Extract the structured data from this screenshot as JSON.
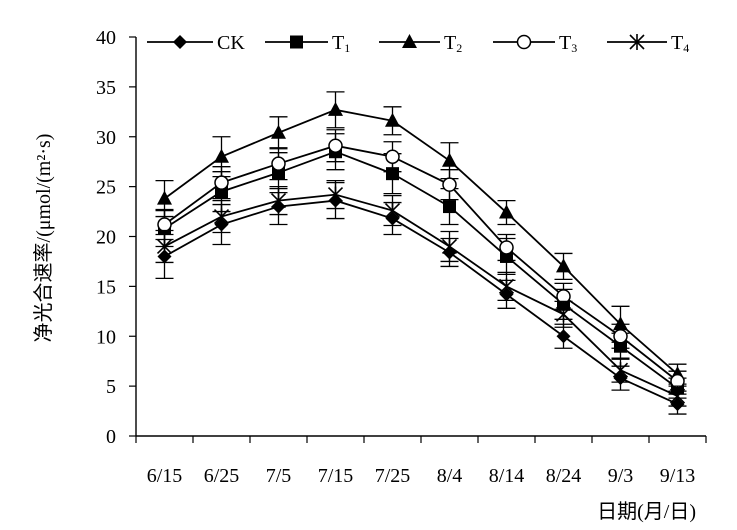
{
  "chart_data": {
    "type": "line",
    "xlabel": "日期(月/日)",
    "ylabel": "净光合速率/(μmol/(m²·s)",
    "categories": [
      "6/15",
      "6/25",
      "7/5",
      "7/15",
      "7/25",
      "8/4",
      "8/14",
      "8/24",
      "9/3",
      "9/13"
    ],
    "ylim": [
      0,
      40
    ],
    "yticks": [
      0,
      5,
      10,
      15,
      20,
      25,
      30,
      35,
      40
    ],
    "grid": false,
    "legend_position": "top",
    "series": [
      {
        "name": "CK",
        "sub": "",
        "marker": "diamond",
        "values": [
          18.0,
          21.2,
          23.0,
          23.6,
          21.8,
          18.4,
          14.2,
          10.0,
          5.8,
          3.2
        ],
        "errors": [
          2.2,
          2.0,
          1.8,
          1.8,
          1.6,
          1.4,
          1.4,
          1.2,
          1.2,
          1.0
        ]
      },
      {
        "name": "T",
        "sub": "1",
        "marker": "square",
        "values": [
          20.8,
          24.5,
          26.4,
          28.5,
          26.3,
          23.0,
          18.0,
          13.2,
          9.0,
          4.8
        ],
        "errors": [
          1.8,
          2.0,
          2.0,
          1.8,
          2.0,
          1.8,
          1.8,
          1.5,
          1.3,
          1.0
        ]
      },
      {
        "name": "T",
        "sub": "2",
        "marker": "triangle",
        "values": [
          23.8,
          28.0,
          30.4,
          32.7,
          31.6,
          27.6,
          22.4,
          17.0,
          11.2,
          6.2
        ],
        "errors": [
          1.8,
          2.0,
          1.6,
          1.8,
          1.4,
          1.8,
          1.2,
          1.3,
          1.8,
          1.0
        ]
      },
      {
        "name": "T",
        "sub": "3",
        "marker": "circle",
        "values": [
          21.2,
          25.4,
          27.3,
          29.1,
          28.0,
          25.2,
          18.9,
          14.0,
          10.0,
          5.5
        ],
        "errors": [
          1.5,
          1.6,
          1.6,
          1.6,
          1.5,
          1.5,
          1.3,
          1.3,
          1.2,
          1.0
        ]
      },
      {
        "name": "T",
        "sub": "4",
        "marker": "star",
        "values": [
          19.0,
          22.0,
          23.6,
          24.2,
          22.6,
          19.0,
          15.0,
          12.2,
          6.6,
          4.0
        ],
        "errors": [
          1.6,
          1.6,
          1.4,
          1.4,
          1.5,
          1.5,
          1.4,
          1.3,
          1.2,
          1.0
        ]
      }
    ]
  }
}
